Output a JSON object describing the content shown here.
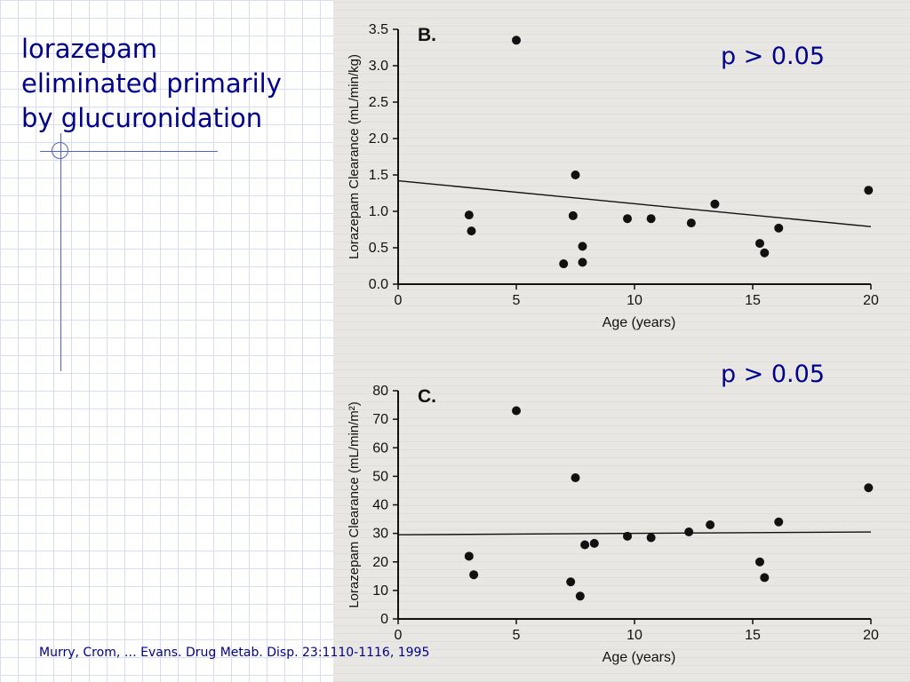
{
  "slide": {
    "title": "lorazepam\neliminated primarily\nby glucuronidation",
    "citation": "Murry, Crom, … Evans.  Drug Metab. Disp. 23:1110-1116, 1995"
  },
  "chart_data": [
    {
      "type": "scatter",
      "panel_label": "B.",
      "annotation": "p > 0.05",
      "xlabel": "Age (years)",
      "ylabel": "Lorazepam Clearance (mL/min/kg)",
      "xlim": [
        0,
        20
      ],
      "ylim": [
        0,
        3.5
      ],
      "xticks": [
        0,
        5,
        10,
        15,
        20
      ],
      "yticks": [
        0.0,
        0.5,
        1.0,
        1.5,
        2.0,
        2.5,
        3.0,
        3.5
      ],
      "ytick_labels": [
        "0.0",
        "0.5",
        "1.0",
        "1.5",
        "2.0",
        "2.5",
        "3.0",
        "3.5"
      ],
      "x": [
        5.0,
        3.0,
        3.1,
        7.5,
        7.8,
        7.8,
        7.0,
        7.4,
        9.7,
        10.7,
        12.4,
        13.4,
        15.3,
        15.5,
        16.1,
        19.9
      ],
      "y": [
        3.35,
        0.95,
        0.73,
        1.5,
        0.52,
        0.3,
        0.28,
        0.94,
        0.9,
        0.9,
        0.84,
        1.1,
        0.56,
        0.43,
        0.77,
        1.29
      ],
      "trend": {
        "x": [
          0,
          20
        ],
        "y": [
          1.42,
          0.79
        ]
      }
    },
    {
      "type": "scatter",
      "panel_label": "C.",
      "annotation": "p > 0.05",
      "xlabel": "Age (years)",
      "ylabel": "Lorazepam Clearance (mL/min/m²)",
      "xlim": [
        0,
        20
      ],
      "ylim": [
        0,
        80
      ],
      "xticks": [
        0,
        5,
        10,
        15,
        20
      ],
      "yticks": [
        0,
        10,
        20,
        30,
        40,
        50,
        60,
        70,
        80
      ],
      "ytick_labels": [
        "0",
        "10",
        "20",
        "30",
        "40",
        "50",
        "60",
        "70",
        "80"
      ],
      "x": [
        5.0,
        3.0,
        3.2,
        7.5,
        7.9,
        7.7,
        7.3,
        8.3,
        9.7,
        10.7,
        12.3,
        13.2,
        15.3,
        15.5,
        16.1,
        19.9
      ],
      "y": [
        73,
        22,
        15.5,
        49.5,
        26,
        8,
        13,
        26.5,
        29,
        28.5,
        30.5,
        33,
        20,
        14.5,
        34,
        46
      ],
      "trend": {
        "x": [
          0,
          20
        ],
        "y": [
          29.5,
          30.5
        ]
      }
    }
  ]
}
